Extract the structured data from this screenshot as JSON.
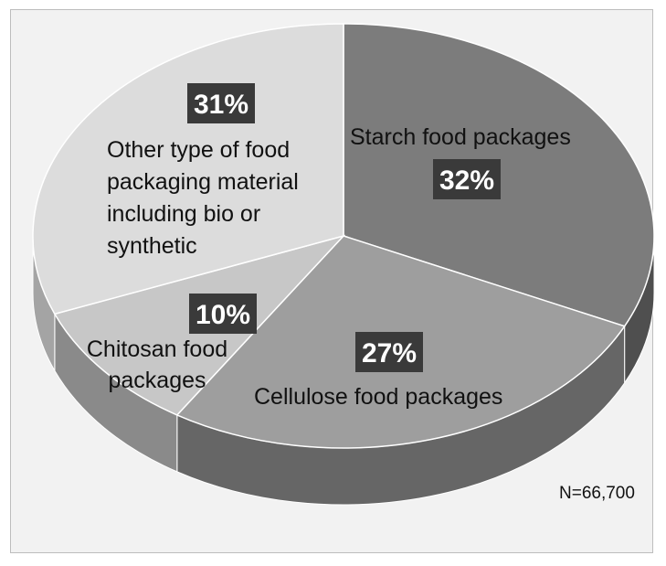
{
  "chart_data": {
    "type": "pie",
    "style": "3d-pie",
    "categories": [
      "Starch food packages",
      "Cellulose food packages",
      "Chitosan food packages",
      "Other type of food packaging material including bio or synthetic"
    ],
    "values": [
      32,
      27,
      10,
      31
    ],
    "value_labels": [
      "32%",
      "27%",
      "10%",
      "31%"
    ],
    "label_lines": [
      [
        "Starch food packages"
      ],
      [
        "Cellulose food packages"
      ],
      [
        "Chitosan food",
        "packages"
      ],
      [
        "Other type of food",
        "packaging material",
        "including bio or",
        "synthetic"
      ]
    ],
    "colors": [
      "#7c7c7c",
      "#9e9e9e",
      "#c7c7c7",
      "#dcdcdc"
    ],
    "side_colors": [
      "#4f4f4f",
      "#666666",
      "#8a8a8a",
      "#a4a4a4"
    ],
    "note": "N=66,700",
    "legend": "none",
    "grid": false
  }
}
